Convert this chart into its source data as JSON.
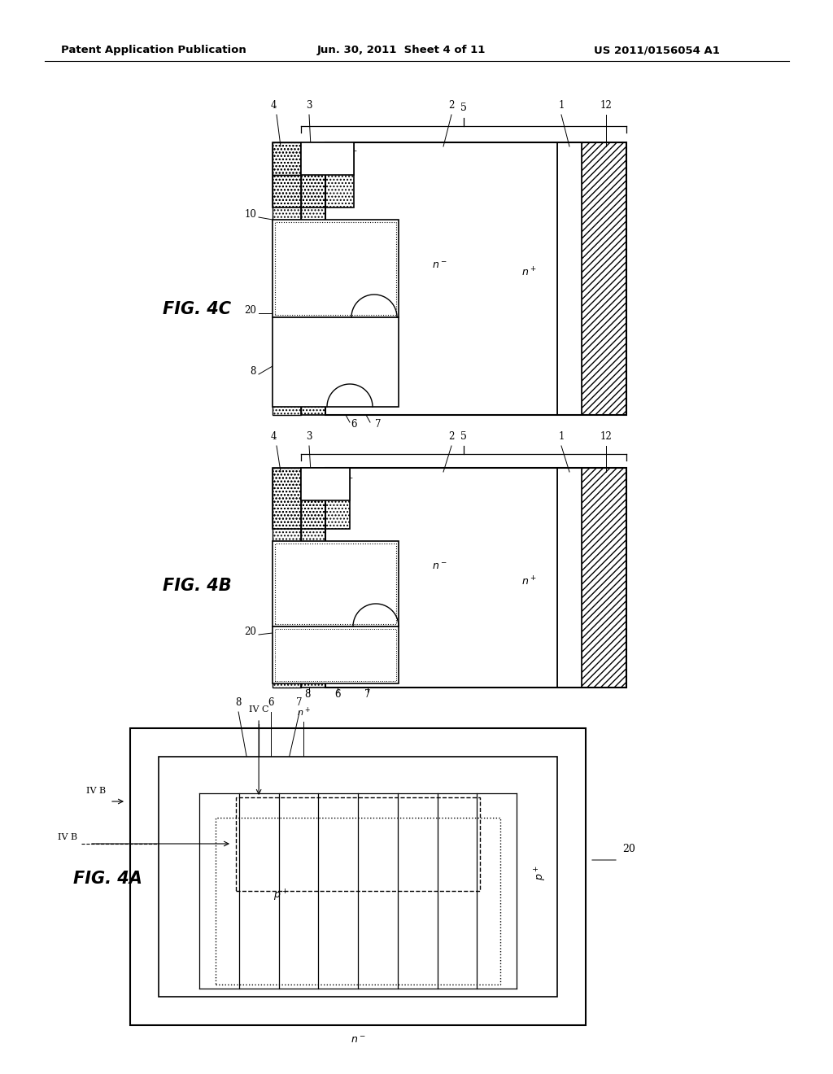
{
  "title_left": "Patent Application Publication",
  "title_center": "Jun. 30, 2011  Sheet 4 of 11",
  "title_right": "US 2011/0156054 A1",
  "background_color": "#ffffff"
}
